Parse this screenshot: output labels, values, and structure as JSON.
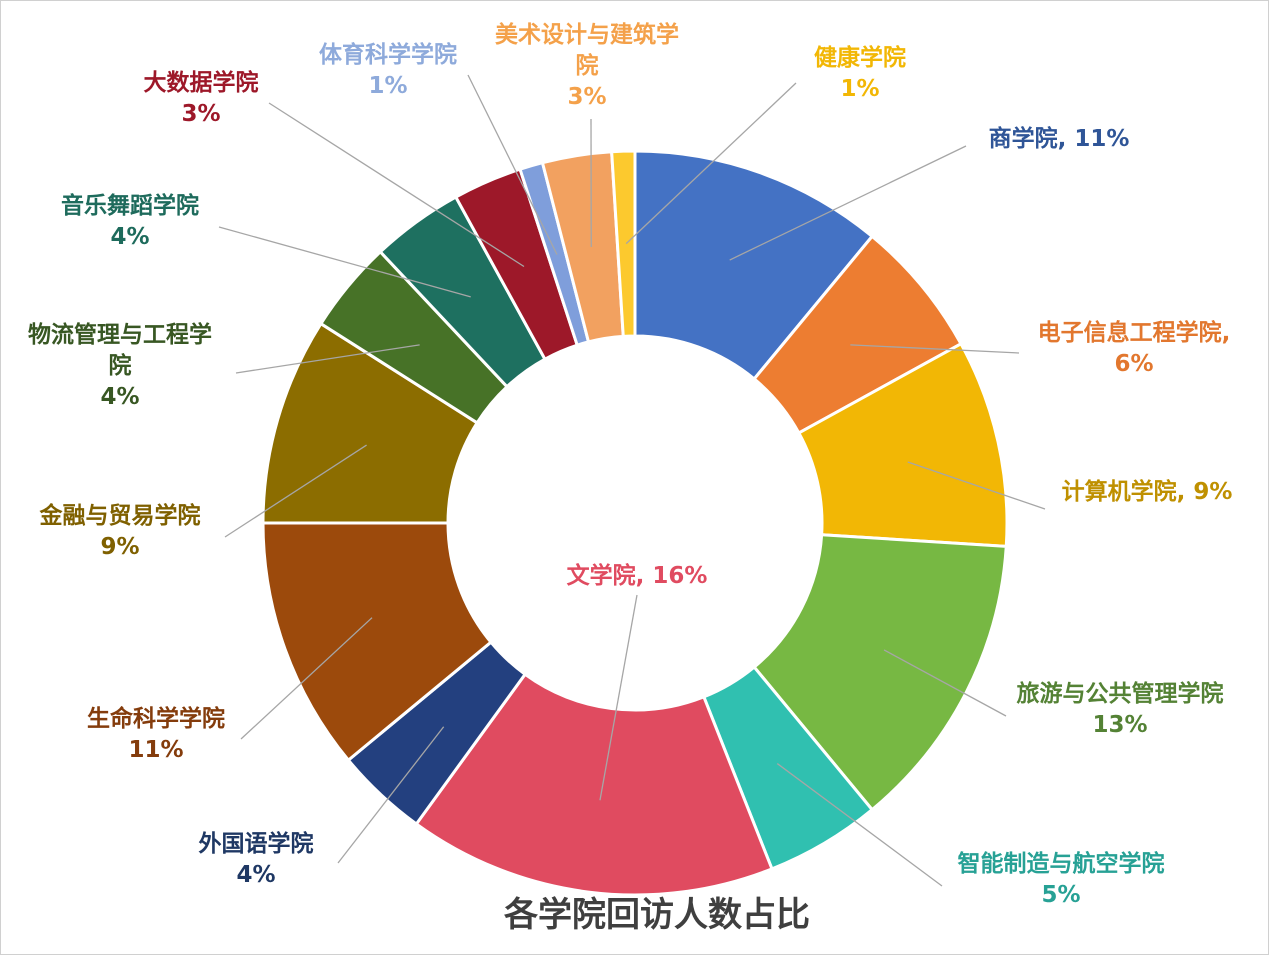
{
  "chart_data": {
    "type": "pie",
    "donut": true,
    "title": "各学院回访人数占比",
    "slices": [
      {
        "label": "商学院",
        "value": 11,
        "pct_text": "11%",
        "color": "#4472C4",
        "label_color": "#2F5597"
      },
      {
        "label": "电子信息工程学院",
        "value": 6,
        "pct_text": "6%",
        "color": "#ED7D31",
        "label_color": "#E2772E"
      },
      {
        "label": "计算机学院",
        "value": 9,
        "pct_text": "9%",
        "color": "#F2B705",
        "label_color": "#BF9000"
      },
      {
        "label": "旅游与公共管理学院",
        "value": 13,
        "pct_text": "13%",
        "color": "#77B843",
        "label_color": "#548235"
      },
      {
        "label": "智能制造与航空学院",
        "value": 5,
        "pct_text": "5%",
        "color": "#30C0B0",
        "label_color": "#27A195"
      },
      {
        "label": "文学院",
        "value": 16,
        "pct_text": "16%",
        "color": "#E04B60",
        "label_color": "#E04B60"
      },
      {
        "label": "外国语学院",
        "value": 4,
        "pct_text": "4%",
        "color": "#23407F",
        "label_color": "#1F3864"
      },
      {
        "label": "生命科学学院",
        "value": 11,
        "pct_text": "11%",
        "color": "#9C4A0C",
        "label_color": "#843C0C"
      },
      {
        "label": "金融与贸易学院",
        "value": 9,
        "pct_text": "9%",
        "color": "#8C6D00",
        "label_color": "#7F6000"
      },
      {
        "label": "物流管理与工程学院",
        "value": 4,
        "pct_text": "4%",
        "color": "#477227",
        "label_color": "#385723"
      },
      {
        "label": "音乐舞蹈学院",
        "value": 4,
        "pct_text": "4%",
        "color": "#1E7060",
        "label_color": "#1E6B5C"
      },
      {
        "label": "大数据学院",
        "value": 3,
        "pct_text": "3%",
        "color": "#9D1829",
        "label_color": "#9D1829"
      },
      {
        "label": "体育科学学院",
        "value": 1,
        "pct_text": "1%",
        "color": "#7F9EDB",
        "label_color": "#8EAADB"
      },
      {
        "label": "美术设计与建筑学院",
        "value": 3,
        "pct_text": "3%",
        "color": "#F2A160",
        "label_color": "#F4A14A"
      },
      {
        "label": "健康学院",
        "value": 1,
        "pct_text": "1%",
        "color": "#FCC92E",
        "label_color": "#F2B705"
      }
    ]
  }
}
